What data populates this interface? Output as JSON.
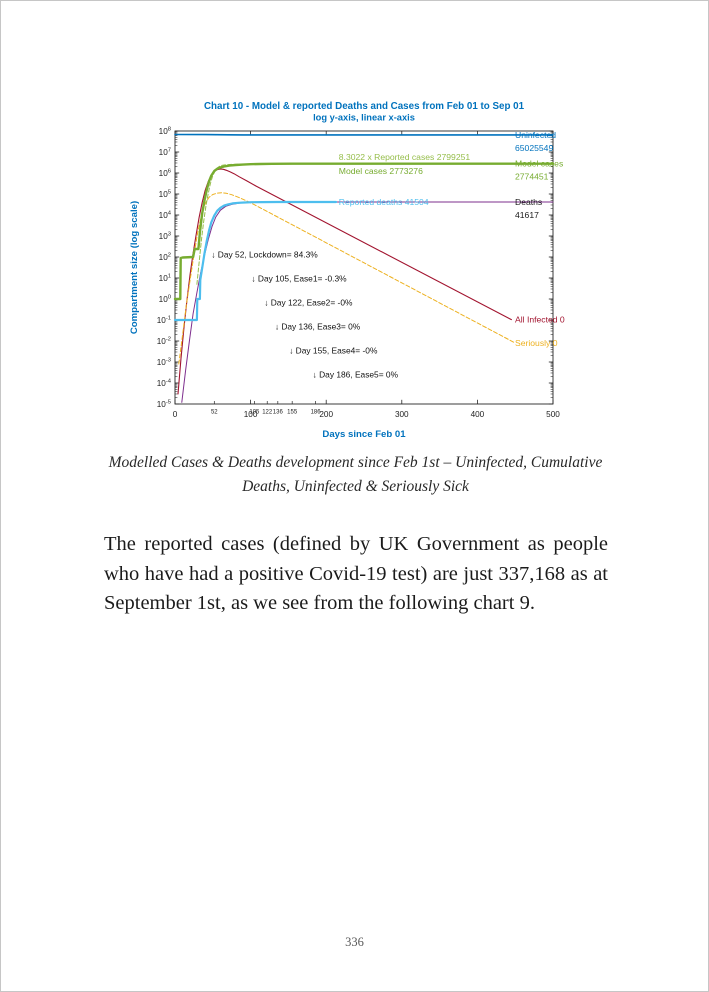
{
  "page": {
    "number": "336"
  },
  "caption": {
    "line1": "Modelled Cases & Deaths development since Feb 1st – Uninfected, Cumulative",
    "line2": "Deaths, Uninfected & Seriously Sick"
  },
  "paragraph": {
    "text": "The reported cases (defined by UK Government as people who have had a positive Covid-19 test) are just 337,168 as at September 1st, as we see from the following chart 9."
  },
  "chart_data": {
    "type": "line",
    "title": "Chart 10 - Model & reported Deaths and Cases from Feb 01 to Sep 01",
    "subtitle": "log y-axis, linear x-axis",
    "xlabel": "Days since Feb 01",
    "ylabel": "Compartment size (log scale)",
    "x_range": [
      0,
      500
    ],
    "y_log_range": [
      -5,
      8
    ],
    "x_major_ticks": [
      0,
      100,
      200,
      300,
      400,
      500
    ],
    "x_event_ticks": [
      52,
      105,
      122,
      136,
      155,
      186
    ],
    "grid": "off",
    "legend_position": "right-edge-labels",
    "colors": {
      "axis": "#262626",
      "tick_text": "#222222",
      "text": "#1a1a1a",
      "blue": "#0072BD",
      "green": "#77AC30",
      "light_green": "#96BE4B",
      "cyan": "#4DBEEE",
      "purple": "#7E2F8E",
      "dark_red": "#A2142F",
      "yellow": "#EDB120"
    },
    "series": [
      {
        "name": "uninfected",
        "color_key": "blue",
        "width": 1.6,
        "dash": null,
        "points": [
          [
            0,
            67800000
          ],
          [
            40,
            67600000
          ],
          [
            55,
            66800000
          ],
          [
            70,
            65900000
          ],
          [
            90,
            65400000
          ],
          [
            120,
            65150000
          ],
          [
            213,
            65030000
          ],
          [
            500,
            65025549
          ]
        ]
      },
      {
        "name": "all-infected",
        "color_key": "dark_red",
        "width": 1.1,
        "dash": null,
        "points": [
          [
            4,
            3e-05
          ],
          [
            8,
            0.0015
          ],
          [
            12,
            0.05
          ],
          [
            16,
            1
          ],
          [
            20,
            15
          ],
          [
            24,
            150
          ],
          [
            28,
            1200
          ],
          [
            32,
            8000
          ],
          [
            36,
            40000
          ],
          [
            40,
            150000
          ],
          [
            44,
            400000
          ],
          [
            48,
            800000
          ],
          [
            52,
            1200000
          ],
          [
            56,
            1450000
          ],
          [
            60,
            1550000
          ],
          [
            64,
            1500000
          ],
          [
            68,
            1350000
          ],
          [
            73,
            1130000
          ],
          [
            78,
            930000
          ],
          [
            85,
            660000
          ],
          [
            95,
            420000
          ],
          [
            108,
            230000
          ],
          [
            445,
            0.105
          ]
        ]
      },
      {
        "name": "seriously-sick",
        "color_key": "yellow",
        "width": 1,
        "dash": "4 2.2",
        "points": [
          [
            5,
            0.0008
          ],
          [
            10,
            0.02
          ],
          [
            15,
            0.5
          ],
          [
            20,
            8
          ],
          [
            25,
            120
          ],
          [
            30,
            1500
          ],
          [
            35,
            10000
          ],
          [
            40,
            35000
          ],
          [
            45,
            70000
          ],
          [
            50,
            95000
          ],
          [
            56,
            110000
          ],
          [
            62,
            115000
          ],
          [
            68,
            108000
          ],
          [
            75,
            93000
          ],
          [
            84,
            70000
          ],
          [
            94,
            48000
          ],
          [
            105,
            31000
          ],
          [
            450,
            0.008
          ]
        ]
      },
      {
        "name": "scaled-reported-cases",
        "color_key": "light_green",
        "width": 1,
        "dash": "4 2.2",
        "points": [
          [
            29,
            5
          ],
          [
            32,
            60
          ],
          [
            35,
            700
          ],
          [
            38,
            5000
          ],
          [
            41,
            28000
          ],
          [
            44,
            110000
          ],
          [
            47,
            330000
          ],
          [
            50,
            750000
          ],
          [
            53,
            1250000
          ],
          [
            56,
            1750000
          ],
          [
            59,
            2100000
          ],
          [
            62,
            2300000
          ],
          [
            66,
            2430000
          ],
          [
            70,
            2500000
          ],
          [
            76,
            2560000
          ],
          [
            84,
            2620000
          ],
          [
            94,
            2680000
          ],
          [
            106,
            2730000
          ],
          [
            125,
            2770000
          ],
          [
            160,
            2790000
          ],
          [
            213,
            2799251
          ]
        ]
      },
      {
        "name": "model-cases",
        "color_key": "green",
        "width": 2.4,
        "dash": null,
        "points": [
          [
            0,
            1
          ],
          [
            7,
            1
          ],
          [
            7.6,
            90
          ],
          [
            10,
            95
          ],
          [
            24,
            100
          ],
          [
            26,
            240
          ],
          [
            31,
            240
          ],
          [
            33,
            1500
          ],
          [
            36,
            12000
          ],
          [
            39,
            50000
          ],
          [
            42,
            160000
          ],
          [
            45,
            400000
          ],
          [
            48,
            750000
          ],
          [
            52,
            1250000
          ],
          [
            56,
            1600000
          ],
          [
            60,
            1850000
          ],
          [
            65,
            2050000
          ],
          [
            72,
            2250000
          ],
          [
            80,
            2400000
          ],
          [
            90,
            2520000
          ],
          [
            100,
            2620000
          ],
          [
            112,
            2690000
          ],
          [
            128,
            2740000
          ],
          [
            155,
            2765000
          ],
          [
            213,
            2773276
          ],
          [
            500,
            2774451
          ]
        ]
      },
      {
        "name": "model-deaths",
        "color_key": "purple",
        "width": 1,
        "dash": null,
        "points": [
          [
            9,
            1.2e-05
          ],
          [
            14,
            0.0004
          ],
          [
            19,
            0.01
          ],
          [
            24,
            0.2
          ],
          [
            29,
            2
          ],
          [
            34,
            18
          ],
          [
            39,
            120
          ],
          [
            44,
            700
          ],
          [
            49,
            2800
          ],
          [
            54,
            8000
          ],
          [
            60,
            17000
          ],
          [
            67,
            26000
          ],
          [
            75,
            32000
          ],
          [
            85,
            37000
          ],
          [
            95,
            39500
          ],
          [
            108,
            40700
          ],
          [
            128,
            41400
          ],
          [
            160,
            41600
          ],
          [
            500,
            41617
          ]
        ]
      },
      {
        "name": "reported-deaths",
        "color_key": "cyan",
        "width": 2.2,
        "dash": null,
        "points": [
          [
            0,
            0.1
          ],
          [
            29,
            0.1
          ],
          [
            29.5,
            1
          ],
          [
            33,
            1
          ],
          [
            33.5,
            8
          ],
          [
            36,
            30
          ],
          [
            39,
            150
          ],
          [
            42,
            600
          ],
          [
            45,
            1800
          ],
          [
            48,
            4500
          ],
          [
            52,
            9500
          ],
          [
            56,
            16000
          ],
          [
            60,
            22000
          ],
          [
            65,
            28000
          ],
          [
            70,
            32000
          ],
          [
            76,
            35500
          ],
          [
            84,
            38000
          ],
          [
            92,
            39500
          ],
          [
            102,
            40500
          ],
          [
            115,
            41100
          ],
          [
            135,
            41400
          ],
          [
            213,
            41504
          ]
        ]
      }
    ],
    "right_labels": [
      {
        "lines": [
          "Uninfected",
          "65025549"
        ],
        "color_key": "blue",
        "value": 65025549
      },
      {
        "lines": [
          "Model cases",
          "2774451"
        ],
        "color_key": "green",
        "value": 2774451
      },
      {
        "lines": [
          "Deaths",
          "41617"
        ],
        "color_key": "text",
        "value": 41617
      },
      {
        "lines": [
          "All Infected 0"
        ],
        "color_key": "dark_red",
        "value": 0.105
      },
      {
        "lines": [
          "Seriously 0"
        ],
        "color_key": "yellow",
        "value": 0.008
      }
    ],
    "line_annotations": [
      {
        "text": "8.3022 x Reported cases 2799251",
        "color_key": "light_green",
        "day": 214,
        "value": 2799251,
        "dy": -3.5
      },
      {
        "text": "Model cases 2773276",
        "color_key": "green",
        "day": 214,
        "value": 2773276,
        "dy": 10.5
      },
      {
        "text": "Reported deaths 41504",
        "color_key": "cyan",
        "day": 214,
        "value": 41504,
        "dy": 3
      }
    ],
    "event_annotations": [
      {
        "text": "↓ Day 52, Lockdown= 84.3%",
        "day": 52
      },
      {
        "text": "↓ Day 105, Ease1= -0.3%",
        "day": 105
      },
      {
        "text": "↓ Day 122, Ease2= -0%",
        "day": 122
      },
      {
        "text": "↓ Day 136, Ease3= 0%",
        "day": 136
      },
      {
        "text": "↓ Day 155, Ease4= -0%",
        "day": 155
      },
      {
        "text": "↓ Day 186, Ease5= 0%",
        "day": 186
      }
    ]
  }
}
